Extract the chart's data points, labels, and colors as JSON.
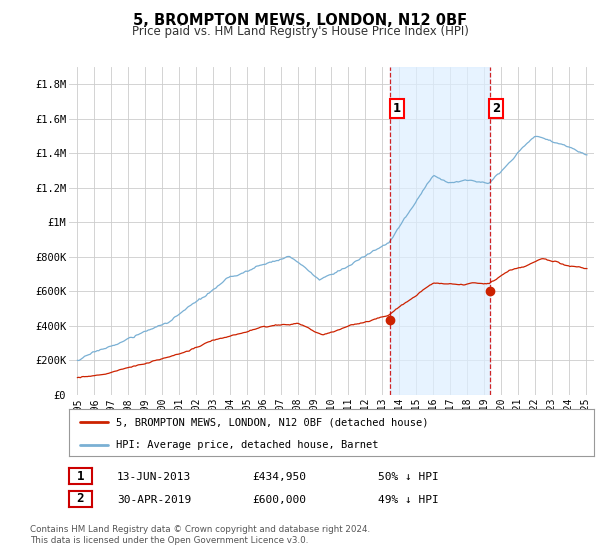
{
  "title": "5, BROMPTON MEWS, LONDON, N12 0BF",
  "subtitle": "Price paid vs. HM Land Registry's House Price Index (HPI)",
  "ylim": [
    0,
    1900000
  ],
  "xlim_start": 1994.5,
  "xlim_end": 2025.5,
  "background_color": "#ffffff",
  "plot_bg_color": "#ffffff",
  "grid_color": "#cccccc",
  "hpi_color": "#7ab0d4",
  "hpi_shade_color": "#ddeeff",
  "price_color": "#cc2200",
  "marker_color": "#cc2200",
  "sale1_x": 2013.45,
  "sale1_y": 434950,
  "sale2_x": 2019.33,
  "sale2_y": 600000,
  "sale1_date": "13-JUN-2013",
  "sale1_price": "£434,950",
  "sale1_note": "50% ↓ HPI",
  "sale2_date": "30-APR-2019",
  "sale2_price": "£600,000",
  "sale2_note": "49% ↓ HPI",
  "legend_line1": "5, BROMPTON MEWS, LONDON, N12 0BF (detached house)",
  "legend_line2": "HPI: Average price, detached house, Barnet",
  "footer": "Contains HM Land Registry data © Crown copyright and database right 2024.\nThis data is licensed under the Open Government Licence v3.0.",
  "yticks": [
    0,
    200000,
    400000,
    600000,
    800000,
    1000000,
    1200000,
    1400000,
    1600000,
    1800000
  ],
  "ytick_labels": [
    "£0",
    "£200K",
    "£400K",
    "£600K",
    "£800K",
    "£1M",
    "£1.2M",
    "£1.4M",
    "£1.6M",
    "£1.8M"
  ],
  "xticks": [
    1995,
    1996,
    1997,
    1998,
    1999,
    2000,
    2001,
    2002,
    2003,
    2004,
    2005,
    2006,
    2007,
    2008,
    2009,
    2010,
    2011,
    2012,
    2013,
    2014,
    2015,
    2016,
    2017,
    2018,
    2019,
    2020,
    2021,
    2022,
    2023,
    2024,
    2025
  ]
}
